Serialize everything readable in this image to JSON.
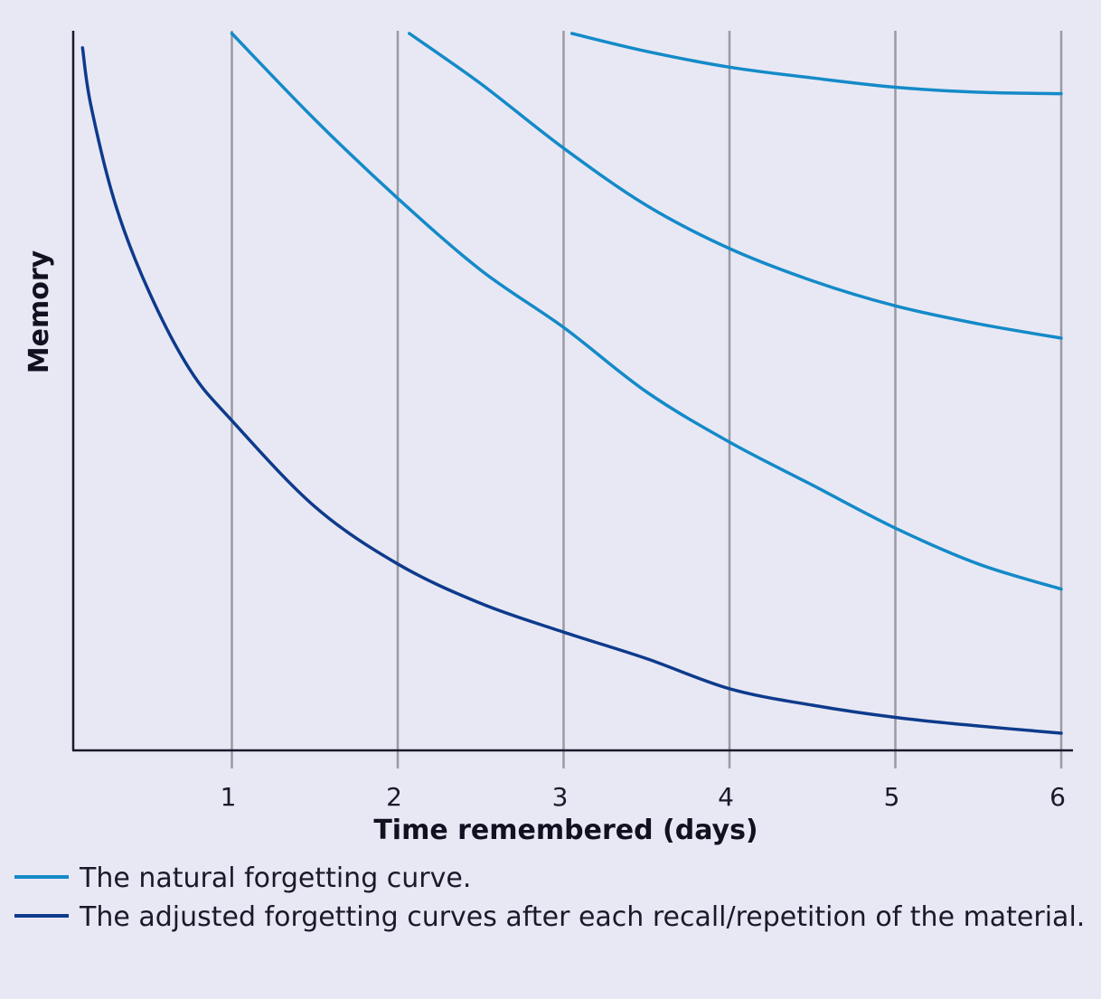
{
  "chart_data": {
    "type": "line",
    "title": "",
    "xlabel": "Time remembered (days)",
    "ylabel": "Memory",
    "xlim": [
      0.1,
      6.1
    ],
    "ylim": [
      0,
      1
    ],
    "x_ticks": [
      "1",
      "2",
      "3",
      "4",
      "5",
      "6"
    ],
    "grid": "vertical lines at each day",
    "legend_position": "bottom",
    "series": [
      {
        "name": "The adjusted forgetting curves after each recall/repetition of the material.",
        "color": "#0d3a8c",
        "points": [
          [
            0.1,
            0.98
          ],
          [
            0.15,
            0.9
          ],
          [
            0.3,
            0.76
          ],
          [
            0.5,
            0.64
          ],
          [
            0.75,
            0.53
          ],
          [
            1,
            0.46
          ],
          [
            1.5,
            0.34
          ],
          [
            2,
            0.26
          ],
          [
            2.5,
            0.205
          ],
          [
            3,
            0.165
          ],
          [
            3.5,
            0.128
          ],
          [
            4,
            0.086
          ],
          [
            4.5,
            0.063
          ],
          [
            5,
            0.046
          ],
          [
            5.5,
            0.034
          ],
          [
            6,
            0.024
          ]
        ]
      },
      {
        "name": "The natural forgetting curve.",
        "color": "#148ac8",
        "points": [
          [
            1,
            1.0
          ],
          [
            1.5,
            0.88
          ],
          [
            2,
            0.77
          ],
          [
            2.5,
            0.67
          ],
          [
            3,
            0.59
          ],
          [
            3.5,
            0.5
          ],
          [
            4,
            0.43
          ],
          [
            4.5,
            0.37
          ],
          [
            5,
            0.31
          ],
          [
            5.5,
            0.26
          ],
          [
            6,
            0.225
          ]
        ]
      },
      {
        "name": "The natural forgetting curve.",
        "color": "#148ac8",
        "points": [
          [
            2.07,
            1.0
          ],
          [
            2.5,
            0.93
          ],
          [
            3,
            0.84
          ],
          [
            3.5,
            0.76
          ],
          [
            4,
            0.7
          ],
          [
            4.5,
            0.655
          ],
          [
            5,
            0.62
          ],
          [
            5.5,
            0.595
          ],
          [
            6,
            0.575
          ]
        ]
      },
      {
        "name": "The natural forgetting curve.",
        "color": "#148ac8",
        "points": [
          [
            3.05,
            1.0
          ],
          [
            3.5,
            0.975
          ],
          [
            4,
            0.953
          ],
          [
            4.5,
            0.938
          ],
          [
            5,
            0.925
          ],
          [
            5.5,
            0.918
          ],
          [
            6,
            0.916
          ]
        ]
      }
    ]
  },
  "legend": [
    {
      "label": "The natural forgetting curve.",
      "color": "#148ac8"
    },
    {
      "label": "The adjusted forgetting curves after each recall/repetition of the material.",
      "color": "#0d3a8c"
    }
  ]
}
